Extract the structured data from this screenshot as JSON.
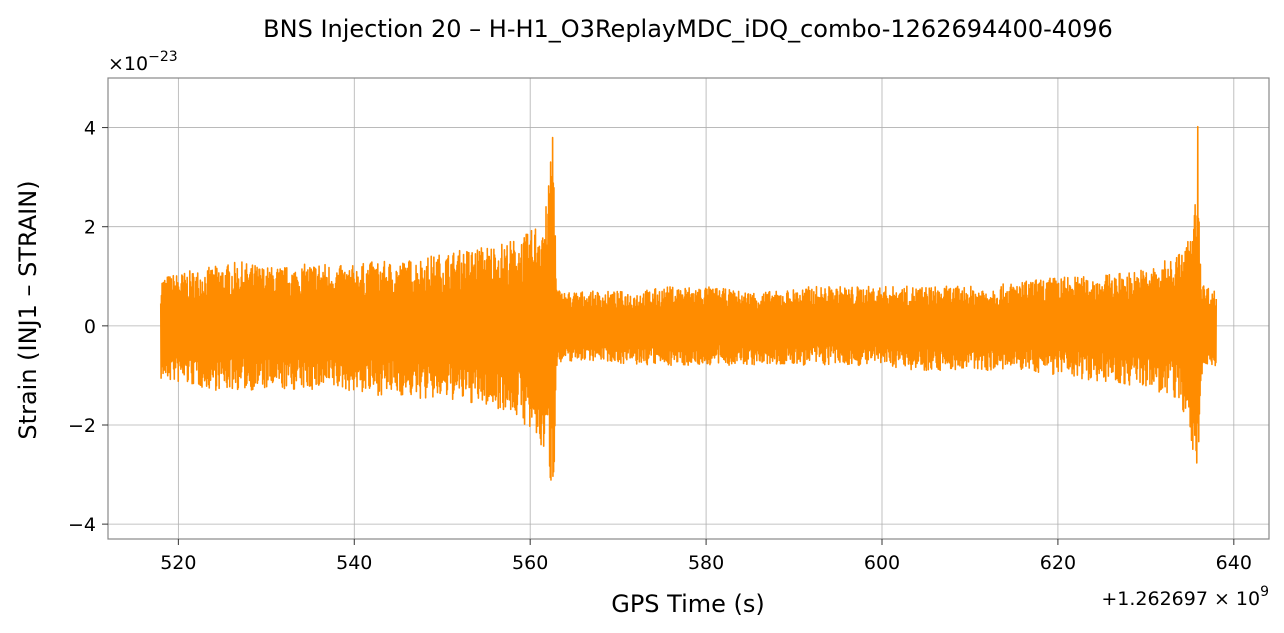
{
  "chart_data": {
    "type": "line",
    "title": "BNS Injection 20 – H-H1_O3ReplayMDC_iDQ_combo-1262694400-4096",
    "xlabel": "GPS Time (s)",
    "ylabel": "Strain (INJ1 – STRAIN)",
    "x_offset_label": "+1.262697",
    "x_offset_suffix": "× 10",
    "x_offset_exp": "9",
    "y_multiplier_label": "×10",
    "y_multiplier_exp": "−23",
    "xlim": [
      512,
      644
    ],
    "ylim": [
      -4.3,
      5.0
    ],
    "x_ticks": [
      520,
      540,
      560,
      580,
      600,
      620,
      640
    ],
    "x_tick_labels": [
      "520",
      "540",
      "560",
      "580",
      "600",
      "620",
      "640"
    ],
    "y_ticks": [
      -4,
      -2,
      0,
      2,
      4
    ],
    "y_tick_labels": [
      "−4",
      "−2",
      "0",
      "2",
      "4"
    ],
    "grid": true,
    "line_color": "#ff8c00",
    "series": [
      {
        "x": [
          518,
          521,
          524,
          527,
          530,
          533,
          536,
          539,
          542,
          545,
          548,
          551,
          554,
          557,
          559,
          560,
          561,
          562,
          562.6,
          563,
          563.5,
          565,
          568,
          572,
          576,
          580,
          584,
          588,
          592,
          596,
          600,
          604,
          608,
          612,
          616,
          620,
          624,
          628,
          631,
          633,
          634.5,
          635.5,
          635.9,
          636.3,
          637,
          638
        ],
        "envelope_upper": [
          1.0,
          1.1,
          1.2,
          1.3,
          1.2,
          1.2,
          1.3,
          1.2,
          1.3,
          1.3,
          1.4,
          1.5,
          1.6,
          1.7,
          1.8,
          1.9,
          2.2,
          2.5,
          4.6,
          0.8,
          0.7,
          0.7,
          0.7,
          0.7,
          0.8,
          0.8,
          0.7,
          0.7,
          0.8,
          0.8,
          0.8,
          0.8,
          0.8,
          0.8,
          0.9,
          1.0,
          1.0,
          1.1,
          1.2,
          1.4,
          1.6,
          2.2,
          4.1,
          0.9,
          0.8,
          0.7
        ],
        "envelope_lower": [
          -1.1,
          -1.2,
          -1.3,
          -1.3,
          -1.3,
          -1.3,
          -1.3,
          -1.3,
          -1.4,
          -1.4,
          -1.5,
          -1.5,
          -1.6,
          -1.7,
          -1.9,
          -2.2,
          -2.5,
          -2.6,
          -3.8,
          -0.8,
          -0.8,
          -0.7,
          -0.7,
          -0.8,
          -0.8,
          -0.8,
          -0.8,
          -0.8,
          -0.8,
          -0.8,
          -0.8,
          -0.9,
          -0.9,
          -0.9,
          -0.9,
          -1.0,
          -1.1,
          -1.2,
          -1.3,
          -1.5,
          -1.8,
          -2.8,
          -3.9,
          -1.0,
          -0.9,
          -0.8
        ]
      }
    ]
  }
}
